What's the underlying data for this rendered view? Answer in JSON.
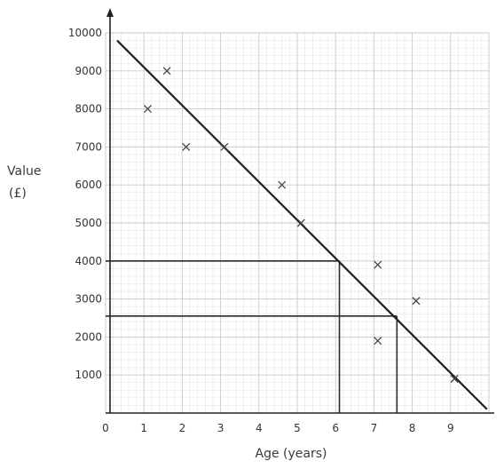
{
  "chart_data": {
    "type": "scatter",
    "xlabel": "Age (years)",
    "ylabel_line1": "Value",
    "ylabel_line2": "(£)",
    "xlim": [
      0,
      10
    ],
    "ylim": [
      0,
      10000
    ],
    "grid": true,
    "x_ticks": [
      "0",
      "1",
      "2",
      "3",
      "4",
      "5",
      "6",
      "7",
      "8",
      "9"
    ],
    "y_ticks": [
      "1000",
      "2000",
      "3000",
      "4000",
      "5000",
      "6000",
      "7000",
      "8000",
      "9000",
      "10000"
    ],
    "x_tick_values": [
      0,
      1,
      2,
      3,
      4,
      5,
      6,
      7,
      8,
      9
    ],
    "y_tick_values": [
      1000,
      2000,
      3000,
      4000,
      5000,
      6000,
      7000,
      8000,
      9000,
      10000
    ],
    "points": [
      {
        "x": 1.1,
        "y": 8000
      },
      {
        "x": 1.6,
        "y": 9000
      },
      {
        "x": 2.1,
        "y": 7000
      },
      {
        "x": 3.1,
        "y": 7000
      },
      {
        "x": 4.6,
        "y": 6000
      },
      {
        "x": 5.1,
        "y": 5000
      },
      {
        "x": 7.1,
        "y": 3900
      },
      {
        "x": 7.1,
        "y": 1900
      },
      {
        "x": 8.1,
        "y": 2950
      },
      {
        "x": 9.1,
        "y": 900
      }
    ],
    "best_fit_line": {
      "x1": 0.3,
      "y1": 9800,
      "x2": 9.95,
      "y2": 100
    },
    "reading_lines": [
      {
        "y": 4000,
        "x": 6.1
      },
      {
        "y": 2550,
        "x": 7.6
      }
    ]
  }
}
